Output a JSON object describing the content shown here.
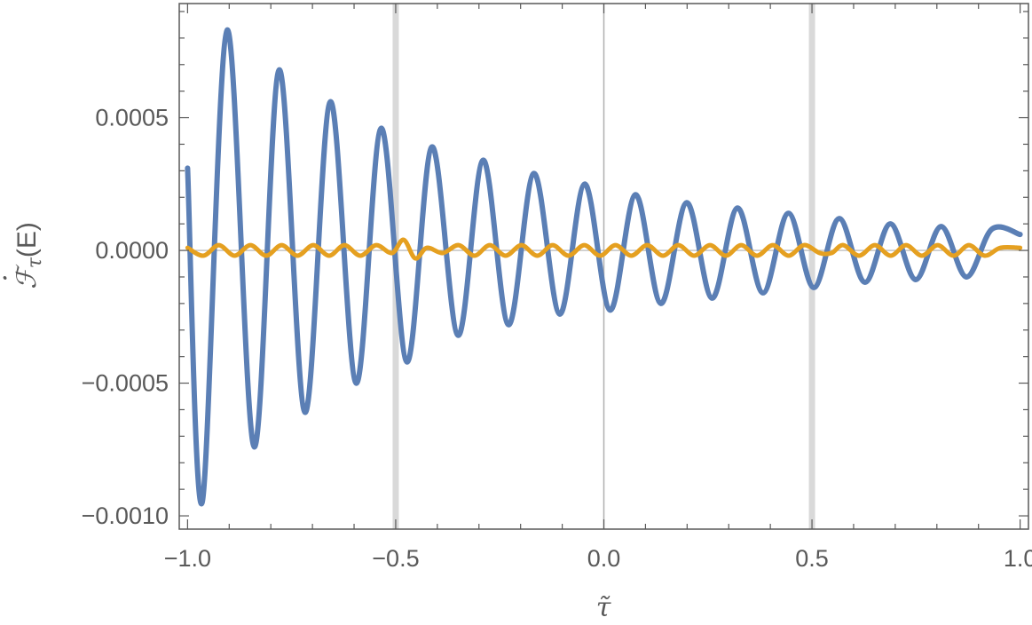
{
  "chart_data": {
    "type": "line",
    "title": "",
    "xlabel": "τ̃",
    "ylabel_parts": {
      "dot": "·",
      "symbol": "ℱ",
      "subscript": "τ",
      "suffix": "(E)"
    },
    "xlim": [
      -1.02,
      1.02
    ],
    "ylim": [
      -0.00105,
      0.00093
    ],
    "x_ticks": [
      {
        "value": -1.0,
        "label": "−1.0"
      },
      {
        "value": -0.5,
        "label": "−0.5"
      },
      {
        "value": 0.0,
        "label": "0.0"
      },
      {
        "value": 0.5,
        "label": "0.5"
      },
      {
        "value": 1.0,
        "label": "1.0"
      }
    ],
    "y_ticks": [
      {
        "value": -0.001,
        "label": "−0.0010"
      },
      {
        "value": -0.0005,
        "label": "−0.0005"
      },
      {
        "value": 0.0,
        "label": "0.0000"
      },
      {
        "value": 0.0005,
        "label": "0.0005"
      }
    ],
    "vertical_bands": [
      -0.5,
      0.5
    ],
    "zero_line_x": 0.0,
    "grid": false,
    "legend": "none",
    "colors": {
      "series_blue": "#5b7fb5",
      "series_orange": "#e5a020",
      "band": "#d9d9d9",
      "axes": "#595959",
      "zero_line": "#b0b0b0"
    },
    "series": [
      {
        "color": "#5b7fb5",
        "x": [
          -1.0,
          -0.905,
          -0.965,
          -0.78,
          -0.84,
          -0.657,
          -0.718,
          -0.535,
          -0.595,
          -0.413,
          -0.473,
          -0.29,
          -0.35,
          -0.168,
          -0.229,
          -0.046,
          -0.106,
          0.076,
          0.015,
          0.199,
          0.137,
          0.321,
          0.26,
          0.443,
          0.382,
          0.565,
          0.504,
          0.688,
          0.627,
          0.81,
          0.749,
          0.932,
          0.871,
          1.0
        ],
        "y": [
          0.00031,
          0.00083,
          -0.00095,
          0.00068,
          -0.00074,
          0.00056,
          -0.00061,
          0.00046,
          -0.0005,
          0.00039,
          -0.00042,
          0.00034,
          -0.00032,
          0.00029,
          -0.00028,
          0.00025,
          -0.00024,
          0.00021,
          -0.000225,
          0.00018,
          -0.0002,
          0.00016,
          -0.00018,
          0.00014,
          -0.00016,
          0.00012,
          -0.00014,
          0.0001,
          -0.00012,
          9e-05,
          -0.00011,
          8e-05,
          -0.0001,
          6e-05
        ]
      },
      {
        "color": "#e5a020",
        "x": [
          -1.0,
          -0.962,
          -0.925,
          -0.887,
          -0.849,
          -0.811,
          -0.774,
          -0.736,
          -0.698,
          -0.66,
          -0.623,
          -0.585,
          -0.547,
          -0.509,
          -0.481,
          -0.453,
          -0.425,
          -0.387,
          -0.349,
          -0.311,
          -0.274,
          -0.236,
          -0.198,
          -0.16,
          -0.123,
          -0.085,
          -0.047,
          -0.009,
          0.028,
          0.066,
          0.104,
          0.142,
          0.179,
          0.217,
          0.255,
          0.293,
          0.33,
          0.368,
          0.406,
          0.444,
          0.481,
          0.519,
          0.547,
          0.575,
          0.613,
          0.651,
          0.689,
          0.726,
          0.764,
          0.802,
          0.84,
          0.877,
          0.915,
          0.953,
          1.0
        ],
        "y": [
          1e-05,
          -2e-05,
          2e-05,
          -2e-05,
          2e-05,
          -2e-05,
          2e-05,
          -2e-05,
          2e-05,
          -2e-05,
          2e-05,
          -2e-05,
          2e-05,
          -1e-05,
          4e-05,
          -3e-05,
          1e-05,
          -1e-05,
          2e-05,
          -2e-05,
          2e-05,
          -2e-05,
          2e-05,
          -2e-05,
          2e-05,
          -2e-05,
          2e-05,
          -2e-05,
          2e-05,
          -2e-05,
          2e-05,
          -2e-05,
          2e-05,
          -2e-05,
          2e-05,
          -2e-05,
          2e-05,
          -2e-05,
          2e-05,
          -2e-05,
          2e-05,
          -1e-05,
          -1e-05,
          2e-05,
          -2e-05,
          2e-05,
          -2e-05,
          2e-05,
          -2e-05,
          2e-05,
          -2e-05,
          2e-05,
          -2e-05,
          1e-05,
          1e-05
        ]
      }
    ]
  }
}
